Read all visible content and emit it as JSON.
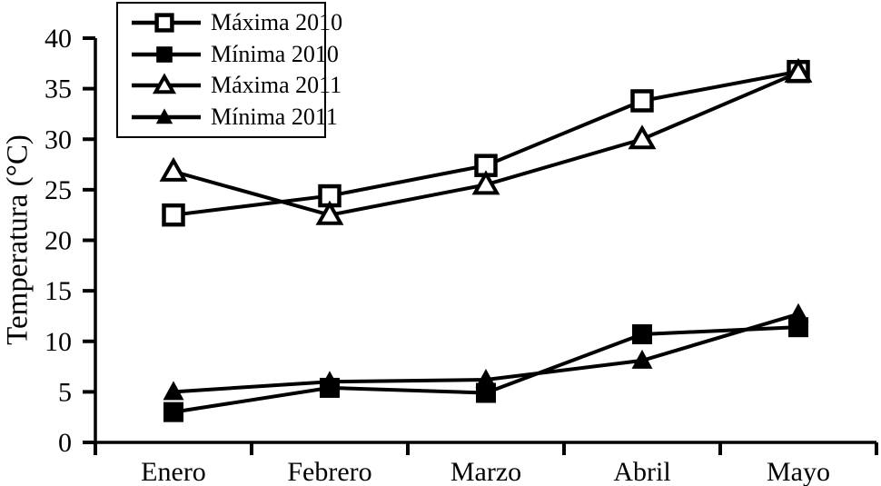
{
  "chart_data": {
    "type": "line",
    "title": "",
    "xlabel": "",
    "ylabel": "Temperatura (°C)",
    "categories": [
      "Enero",
      "Febrero",
      "Marzo",
      "Abril",
      "Mayo"
    ],
    "y_ticks": [
      0,
      5,
      10,
      15,
      20,
      25,
      30,
      35,
      40
    ],
    "ylim": [
      0,
      40
    ],
    "grid": false,
    "legend_position": "top-left",
    "series": [
      {
        "name": "Máxima 2010",
        "marker": "open-square",
        "values": [
          22.5,
          24.4,
          27.4,
          33.8,
          36.7
        ]
      },
      {
        "name": "Mínima 2010",
        "marker": "filled-square",
        "values": [
          3.0,
          5.4,
          4.9,
          10.7,
          11.4
        ]
      },
      {
        "name": "Máxima 2011",
        "marker": "open-triangle",
        "values": [
          26.8,
          22.5,
          25.5,
          30.0,
          36.6
        ]
      },
      {
        "name": "Mínima 2011",
        "marker": "filled-triangle",
        "values": [
          5.0,
          6.0,
          6.2,
          8.1,
          12.7
        ]
      }
    ],
    "colors": {
      "line": "#000000",
      "background": "#ffffff"
    }
  }
}
